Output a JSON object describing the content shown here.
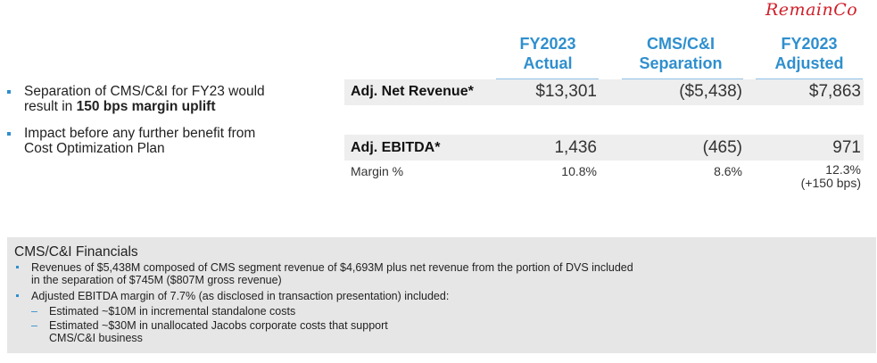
{
  "annotation": "RemainCo",
  "columns": [
    {
      "line1": "FY2023",
      "line2": "Actual"
    },
    {
      "line1": "CMS/C&I",
      "line2": "Separation"
    },
    {
      "line1": "FY2023",
      "line2": "Adjusted"
    }
  ],
  "bullets": [
    {
      "pre": "Separation of CMS/C&I for FY23 would",
      "line2_pre": "result in ",
      "line2_bold": "150 bps margin uplift"
    },
    {
      "line1": "Impact before any further benefit from",
      "line2": "Cost Optimization Plan"
    }
  ],
  "rows": {
    "revenue": {
      "label": "Adj. Net Revenue*",
      "values": [
        "$13,301",
        "($5,438)",
        "$7,863"
      ]
    },
    "ebitda": {
      "label": "Adj. EBITDA*",
      "values": [
        "1,436",
        "(465)",
        "971"
      ]
    },
    "margin": {
      "label": "Margin %",
      "values": [
        "10.8%",
        "8.6%",
        "12.3%"
      ],
      "note": "(+150 bps)"
    }
  },
  "financials": {
    "title": "CMS/C&I Financials",
    "items": [
      {
        "line1": "Revenues of $5,438M composed of CMS segment revenue of $4,693M plus net revenue from the portion of DVS included",
        "line2": "in the separation of $745M ($807M gross revenue)"
      },
      {
        "line1": "Adjusted EBITDA margin of 7.7% (as disclosed in transaction presentation) included:"
      }
    ],
    "subitems": [
      {
        "line1": "Estimated ~$10M in incremental standalone costs"
      },
      {
        "line1": "Estimated ~$30M in unallocated Jacobs corporate costs that support",
        "line2": "CMS/C&I business"
      }
    ]
  }
}
